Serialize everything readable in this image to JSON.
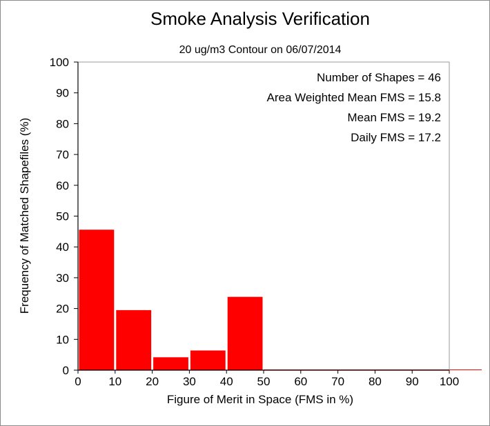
{
  "chart_data": {
    "type": "bar",
    "title": "Smoke Analysis Verification",
    "subtitle": "20 ug/m3 Contour on 06/07/2014",
    "xlabel": "Figure of Merit in Space (FMS in %)",
    "ylabel": "Frequency of Matched Shapefiles (%)",
    "xlim": [
      0,
      100
    ],
    "ylim": [
      0,
      100
    ],
    "xticks": [
      "0",
      "10",
      "20",
      "30",
      "40",
      "50",
      "60",
      "70",
      "80",
      "90",
      "100"
    ],
    "yticks": [
      "0",
      "10",
      "20",
      "30",
      "40",
      "50",
      "60",
      "70",
      "80",
      "90",
      "100"
    ],
    "bins": [
      [
        0,
        10
      ],
      [
        10,
        20
      ],
      [
        20,
        30
      ],
      [
        30,
        40
      ],
      [
        40,
        50
      ],
      [
        50,
        60
      ],
      [
        60,
        70
      ],
      [
        70,
        80
      ],
      [
        80,
        90
      ],
      [
        90,
        100
      ]
    ],
    "values": [
      45.7,
      19.6,
      4.3,
      6.5,
      23.9,
      0,
      0,
      0,
      0,
      0
    ],
    "bar_color": "#ff0000",
    "grid": false,
    "annotations": [
      "Number of Shapes = 46",
      "Area Weighted Mean FMS = 15.8",
      "Mean FMS = 19.2",
      "Daily FMS = 17.2"
    ]
  }
}
